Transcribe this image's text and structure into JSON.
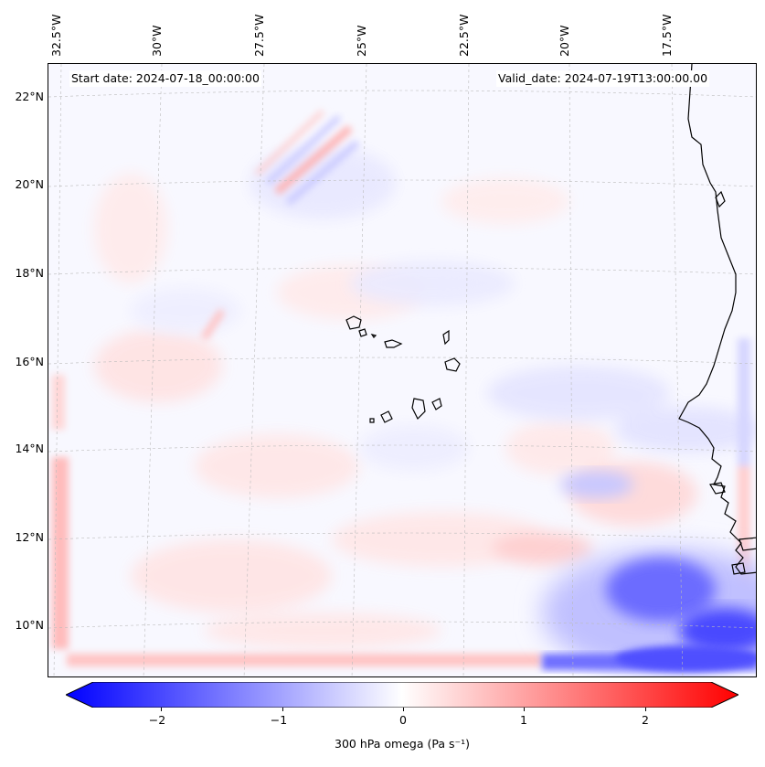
{
  "header": {
    "start_date": "Start date: 2024-07-18_00:00:00",
    "valid_date": "Valid_date: 2024-07-19T13:00:00.00"
  },
  "axes": {
    "longitude_labels": [
      "32.5°W",
      "30°W",
      "27.5°W",
      "25°W",
      "22.5°W",
      "20°W",
      "17.5°W"
    ],
    "latitude_labels": [
      "22°N",
      "20°N",
      "18°N",
      "16°N",
      "14°N",
      "12°N",
      "10°N"
    ]
  },
  "colorbar": {
    "label": "300 hPa omega (Pa s⁻¹)",
    "ticks": [
      "−2",
      "−1",
      "0",
      "1",
      "2"
    ],
    "tick_values": [
      -2,
      -1,
      0,
      1,
      2
    ],
    "min": -2.5,
    "max": 2.5,
    "colors": {
      "negative": "#0000ff",
      "neutral": "#ffffff",
      "positive": "#ff0000"
    }
  },
  "map_features": {
    "coastline_color": "#000000",
    "gridline_color": "#bbbbbb"
  }
}
